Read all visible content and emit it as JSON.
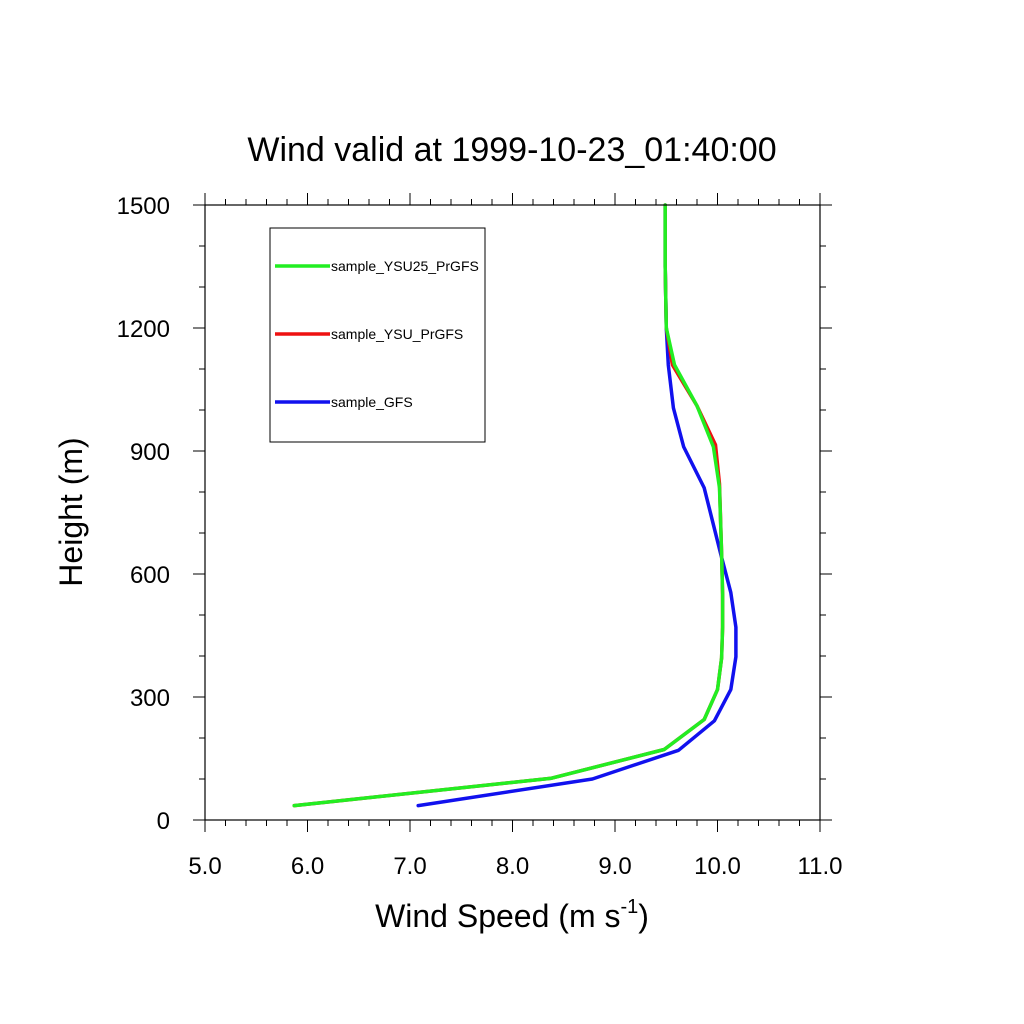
{
  "chart_data": {
    "type": "line",
    "title": "Wind valid at 1999-10-23_01:40:00",
    "xlabel": "Wind Speed (m s",
    "xlabel_superscript": "-1",
    "xlabel_close": ")",
    "ylabel": "Height (m)",
    "xlim": [
      5.0,
      11.0
    ],
    "ylim": [
      0,
      1500
    ],
    "x_ticks": [
      "5.0",
      "6.0",
      "7.0",
      "8.0",
      "9.0",
      "10.0",
      "11.0"
    ],
    "y_ticks": [
      "0",
      "300",
      "600",
      "900",
      "1200",
      "1500"
    ],
    "grid": false,
    "legend_position": "top-left",
    "series": [
      {
        "name": "sample_YSU25_PrGFS",
        "color": "#22ee22",
        "x": [
          5.87,
          8.38,
          9.48,
          9.87,
          10.0,
          10.04,
          10.05,
          10.05,
          10.04,
          10.02,
          9.96,
          9.8,
          9.58,
          9.5,
          9.49,
          9.49
        ],
        "y": [
          35,
          102,
          172,
          245,
          318,
          395,
          470,
          550,
          650,
          810,
          910,
          1010,
          1110,
          1200,
          1350,
          1500
        ]
      },
      {
        "name": "sample_YSU_PrGFS",
        "color": "#ee1111",
        "x": [
          5.87,
          8.38,
          9.48,
          9.87,
          10.0,
          10.04,
          10.05,
          10.05,
          10.04,
          10.02,
          9.98,
          9.8,
          9.56,
          9.5,
          9.49,
          9.49
        ],
        "y": [
          35,
          102,
          172,
          245,
          318,
          395,
          470,
          550,
          650,
          820,
          915,
          1010,
          1110,
          1200,
          1350,
          1500
        ]
      },
      {
        "name": "sample_GFS",
        "color": "#1111ee",
        "x": [
          7.08,
          8.78,
          9.62,
          9.97,
          10.13,
          10.18,
          10.18,
          10.13,
          10.03,
          9.87,
          9.67,
          9.57,
          9.52,
          9.5,
          9.49,
          9.49
        ],
        "y": [
          35,
          100,
          170,
          242,
          318,
          398,
          470,
          555,
          650,
          810,
          910,
          1005,
          1110,
          1200,
          1350,
          1500
        ]
      }
    ]
  }
}
